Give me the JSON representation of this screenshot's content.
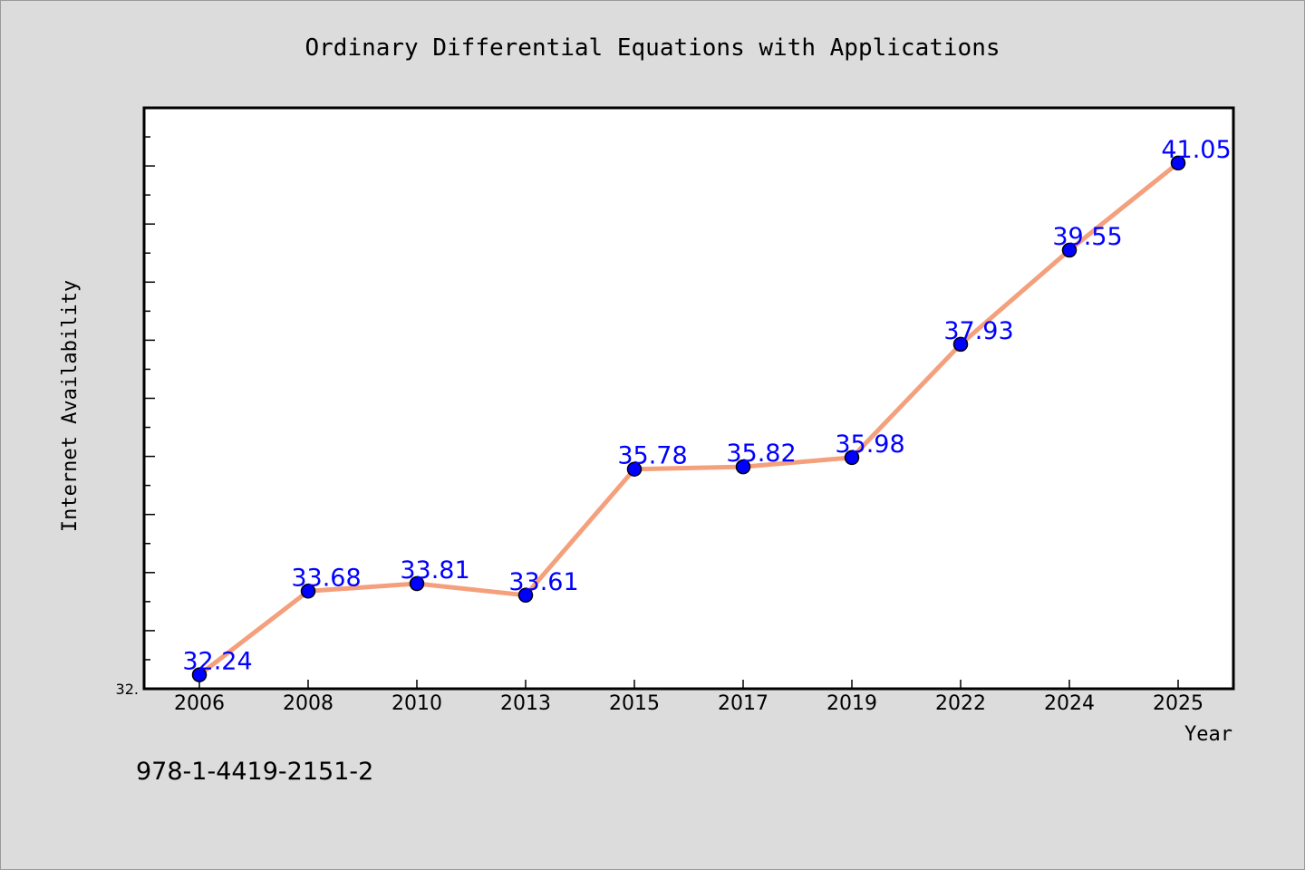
{
  "chart_data": {
    "type": "line",
    "title": "Ordinary Differential Equations with Applications",
    "xlabel": "Year",
    "ylabel": "Internet Availability",
    "categories": [
      "2006",
      "2008",
      "2010",
      "2013",
      "2015",
      "2017",
      "2019",
      "2022",
      "2024",
      "2025"
    ],
    "series": [
      {
        "values": [
          32.24,
          33.68,
          33.81,
          33.61,
          35.78,
          35.82,
          35.98,
          37.93,
          39.55,
          41.05
        ]
      }
    ],
    "data_labels": [
      "32.24",
      "33.68",
      "33.81",
      "33.61",
      "35.78",
      "35.82",
      "35.98",
      "37.93",
      "39.55",
      "41.05"
    ],
    "y_tick_label": "32.",
    "ylim": [
      32.0,
      42.0
    ],
    "grid": false,
    "legend": "none",
    "colors": {
      "line": "#f4a07c",
      "marker": "#0000ff",
      "label": "#0000ff",
      "background": "#dcdcdc",
      "plot_area": "#ffffff"
    }
  },
  "footer": {
    "isbn": "978-1-4419-2151-2"
  }
}
